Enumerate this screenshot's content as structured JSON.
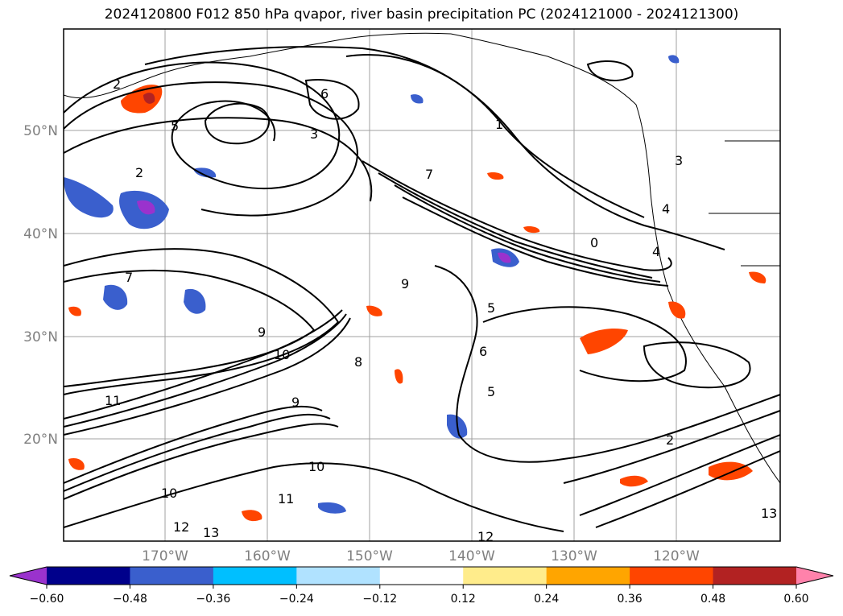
{
  "title": "2024120800 F012 850 hPa qvapor, river basin precipitation PC (2024121000 - 2024121300)",
  "map": {
    "lat_labels": [
      "50°N",
      "40°N",
      "30°N",
      "20°N"
    ],
    "lon_labels": [
      "170°W",
      "160°W",
      "150°W",
      "140°W",
      "130°W",
      "120°W"
    ],
    "contour_labels": [
      "2",
      "5",
      "6",
      "3",
      "1",
      "2",
      "7",
      "7",
      "5",
      "9",
      "10",
      "11",
      "9",
      "6",
      "8",
      "5",
      "10",
      "11",
      "12",
      "13",
      "12",
      "13",
      "10",
      "2",
      "4",
      "3",
      "4",
      "0",
      "9"
    ]
  },
  "colorbar": {
    "colors": [
      "#9a32cd",
      "#00008b",
      "#3a5fcd",
      "#00bfff",
      "#b0e2ff",
      "#ffffff",
      "#ffec8b",
      "#ffa500",
      "#ff4500",
      "#b22222",
      "#ff82ab"
    ],
    "tick_labels": [
      "−0.60",
      "−0.48",
      "−0.36",
      "−0.24",
      "−0.12",
      "0.12",
      "0.24",
      "0.36",
      "0.48",
      "0.60"
    ]
  }
}
